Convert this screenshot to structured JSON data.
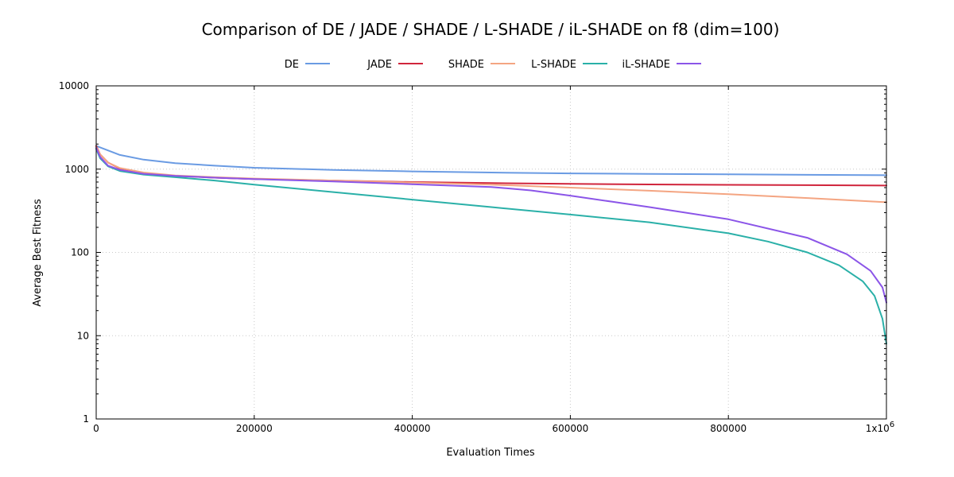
{
  "chart_data": {
    "type": "line",
    "title": "Comparison of DE / JADE / SHADE / L-SHADE / iL-SHADE on f8 (dim=100)",
    "xlabel": "Evaluation Times",
    "ylabel": "Average Best Fitness",
    "xlim": [
      0,
      1000000
    ],
    "ylim": [
      1,
      10000
    ],
    "yscale": "log",
    "x_ticks": [
      "0",
      "200000",
      "400000",
      "600000",
      "800000"
    ],
    "x_tick_last": {
      "base": "1x10",
      "exp": "6"
    },
    "y_ticks": [
      "1",
      "10",
      "100",
      "1000",
      "10000"
    ],
    "grid": true,
    "legend_position": "top",
    "series": [
      {
        "name": "DE",
        "color": "#6a9be3",
        "x": [
          0,
          10000,
          30000,
          60000,
          100000,
          150000,
          200000,
          300000,
          400000,
          500000,
          600000,
          700000,
          800000,
          900000,
          1000000
        ],
        "y": [
          1900,
          1750,
          1480,
          1300,
          1180,
          1100,
          1040,
          980,
          940,
          910,
          890,
          875,
          865,
          855,
          845
        ]
      },
      {
        "name": "JADE",
        "color": "#d0253c",
        "x": [
          0,
          5000,
          15000,
          30000,
          60000,
          100000,
          150000,
          200000,
          300000,
          400000,
          500000,
          600000,
          700000,
          800000,
          900000,
          1000000
        ],
        "y": [
          1900,
          1500,
          1200,
          1020,
          900,
          830,
          790,
          760,
          730,
          700,
          680,
          665,
          655,
          648,
          642,
          635
        ]
      },
      {
        "name": "SHADE",
        "color": "#f4a582",
        "x": [
          0,
          5000,
          15000,
          30000,
          60000,
          100000,
          150000,
          200000,
          300000,
          400000,
          500000,
          600000,
          700000,
          800000,
          900000,
          1000000
        ],
        "y": [
          1850,
          1500,
          1200,
          1030,
          910,
          840,
          800,
          770,
          730,
          690,
          650,
          600,
          550,
          500,
          450,
          400
        ]
      },
      {
        "name": "L-SHADE",
        "color": "#2ab0a8",
        "x": [
          0,
          5000,
          15000,
          30000,
          60000,
          100000,
          150000,
          200000,
          300000,
          400000,
          500000,
          600000,
          700000,
          800000,
          850000,
          900000,
          940000,
          970000,
          985000,
          995000,
          1000000
        ],
        "y": [
          1750,
          1350,
          1080,
          950,
          860,
          800,
          730,
          650,
          530,
          430,
          350,
          285,
          230,
          170,
          135,
          100,
          70,
          45,
          30,
          16,
          8
        ]
      },
      {
        "name": "iL-SHADE",
        "color": "#8b55e8",
        "x": [
          0,
          5000,
          15000,
          30000,
          60000,
          100000,
          150000,
          200000,
          300000,
          400000,
          500000,
          550000,
          600000,
          700000,
          800000,
          900000,
          950000,
          980000,
          995000,
          1000000
        ],
        "y": [
          1800,
          1400,
          1100,
          980,
          880,
          830,
          790,
          760,
          710,
          660,
          610,
          555,
          480,
          350,
          250,
          150,
          95,
          60,
          38,
          25
        ]
      }
    ]
  }
}
